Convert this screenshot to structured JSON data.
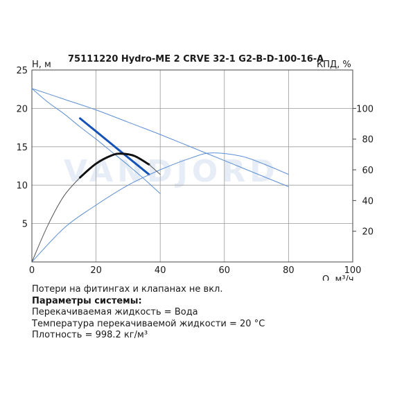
{
  "chart_data": {
    "type": "line",
    "title": "75111220 Hydro-ME 2 CRVE 32-1 G2-B-D-100-16-A",
    "ylabel": "H, м",
    "y2label": "КПД, %",
    "xlabel": "Q, м³/ч",
    "xlim": [
      0,
      100
    ],
    "ylim": [
      0,
      25
    ],
    "y2lim": [
      0,
      125
    ],
    "x_ticks": [
      "0",
      "20",
      "40",
      "60",
      "80",
      "100"
    ],
    "y_ticks": [
      "5",
      "10",
      "15",
      "20",
      "25"
    ],
    "y2_ticks": [
      "20",
      "40",
      "60",
      "80",
      "100"
    ],
    "grid": true,
    "watermark": "VANDJORD",
    "series": [
      {
        "axis": "left",
        "style": "thin",
        "color": "#5b8fd6",
        "x": [
          0,
          10,
          20,
          30,
          40,
          50,
          60,
          70,
          80
        ],
        "values": [
          22.6,
          21.2,
          19.8,
          18.2,
          16.6,
          14.9,
          13.2,
          11.5,
          9.8
        ]
      },
      {
        "axis": "left",
        "style": "thin",
        "color": "#5b8fd6",
        "x": [
          0,
          5,
          10,
          15,
          20,
          25,
          30,
          35,
          40
        ],
        "values": [
          22.6,
          20.8,
          19.3,
          17.6,
          16.0,
          14.3,
          12.6,
          10.8,
          8.9
        ]
      },
      {
        "axis": "left",
        "style": "thick",
        "color": "#1552b8",
        "x": [
          15,
          20,
          25,
          30,
          36.5
        ],
        "values": [
          18.7,
          17.0,
          15.3,
          13.6,
          11.4
        ]
      },
      {
        "axis": "right",
        "style": "thin",
        "color": "#5b8fd6",
        "x": [
          0,
          10,
          20,
          30,
          40,
          50,
          56,
          65,
          72,
          80
        ],
        "values": [
          0,
          22,
          37,
          50,
          60,
          68,
          71,
          69,
          64,
          57
        ]
      },
      {
        "axis": "right",
        "style": "thin",
        "color": "#555555",
        "x": [
          0,
          5,
          10,
          15
        ],
        "values": [
          0,
          24,
          43,
          55
        ]
      },
      {
        "axis": "right",
        "style": "thick",
        "color": "#111111",
        "x": [
          15,
          20,
          25,
          28,
          32,
          36.5
        ],
        "values": [
          55,
          64,
          69.5,
          70.5,
          69,
          63.5
        ]
      },
      {
        "axis": "right",
        "style": "thin",
        "color": "#555555",
        "x": [
          36.5,
          40
        ],
        "values": [
          63.5,
          57
        ]
      }
    ]
  },
  "notes": {
    "line1": "Потери на фитингах и клапанах не вкл.",
    "line2": "Параметры системы:",
    "line3": "Перекачиваемая жидкость = Вода",
    "line4": "Температура перекачиваемой жидкости = 20 °C",
    "line5": "Плотность = 998.2 кг/м³"
  }
}
